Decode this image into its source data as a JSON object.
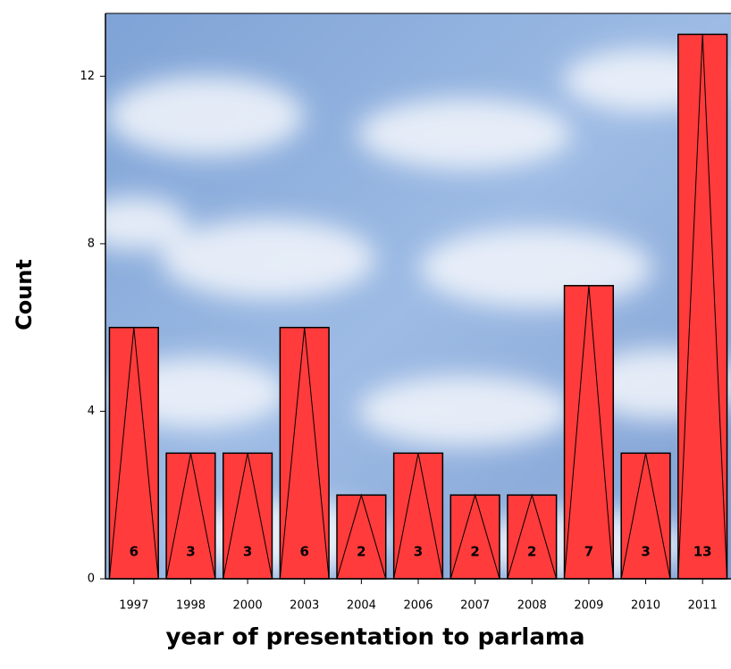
{
  "chart_data": {
    "type": "bar",
    "x_label": "year of presentation to parlama",
    "y_label": "Count",
    "categories": [
      "1997",
      "1998",
      "2000",
      "2003",
      "2004",
      "2006",
      "2007",
      "2008",
      "2009",
      "2010",
      "2011"
    ],
    "values": [
      6,
      3,
      3,
      6,
      2,
      3,
      2,
      2,
      7,
      3,
      13
    ],
    "color": "#ff3b3b",
    "ylim": [
      0,
      13.5
    ],
    "yticks": [
      0,
      4,
      8,
      12
    ],
    "grid": false
  }
}
